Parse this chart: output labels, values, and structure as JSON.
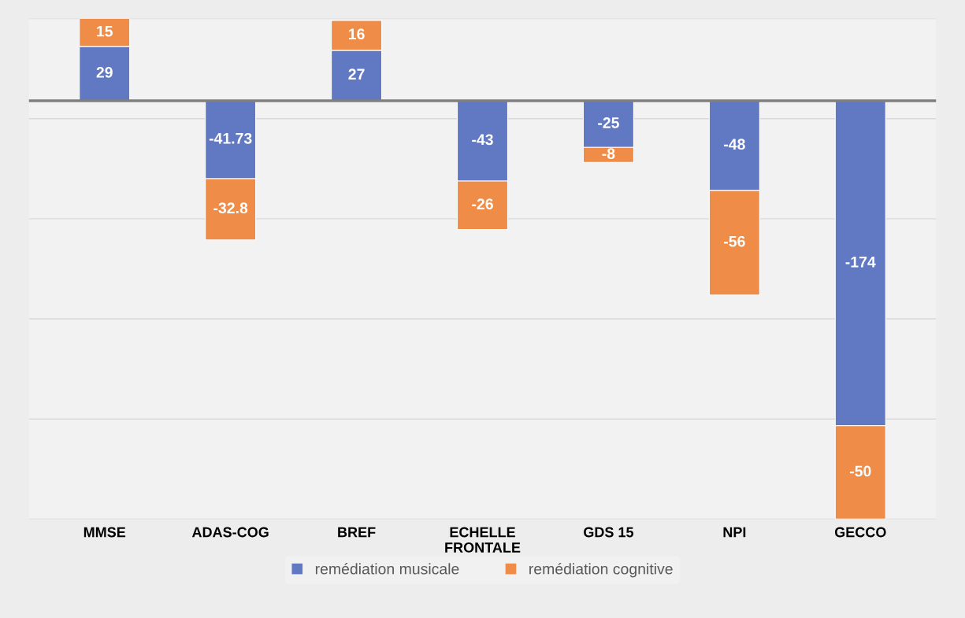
{
  "chart_data": {
    "type": "bar",
    "stacked": true,
    "data_labels": true,
    "grid": "y",
    "legend": "bottom",
    "tick_labels": "x",
    "categories": [
      "MMSE",
      "ADAS-COG",
      "BREF",
      "ECHELLE\nFRONTALE",
      "GDS 15",
      "NPI",
      "GECCO"
    ],
    "series": [
      {
        "name": "remédiation musicale",
        "color": "#6079c2",
        "values": [
          29,
          -41.73,
          27,
          -43,
          -25,
          -48,
          -174
        ]
      },
      {
        "name": "remédiation cognitive",
        "color": "#ef8c47",
        "values": [
          15,
          -32.8,
          16,
          -26,
          -8,
          -56,
          -50
        ]
      }
    ]
  }
}
